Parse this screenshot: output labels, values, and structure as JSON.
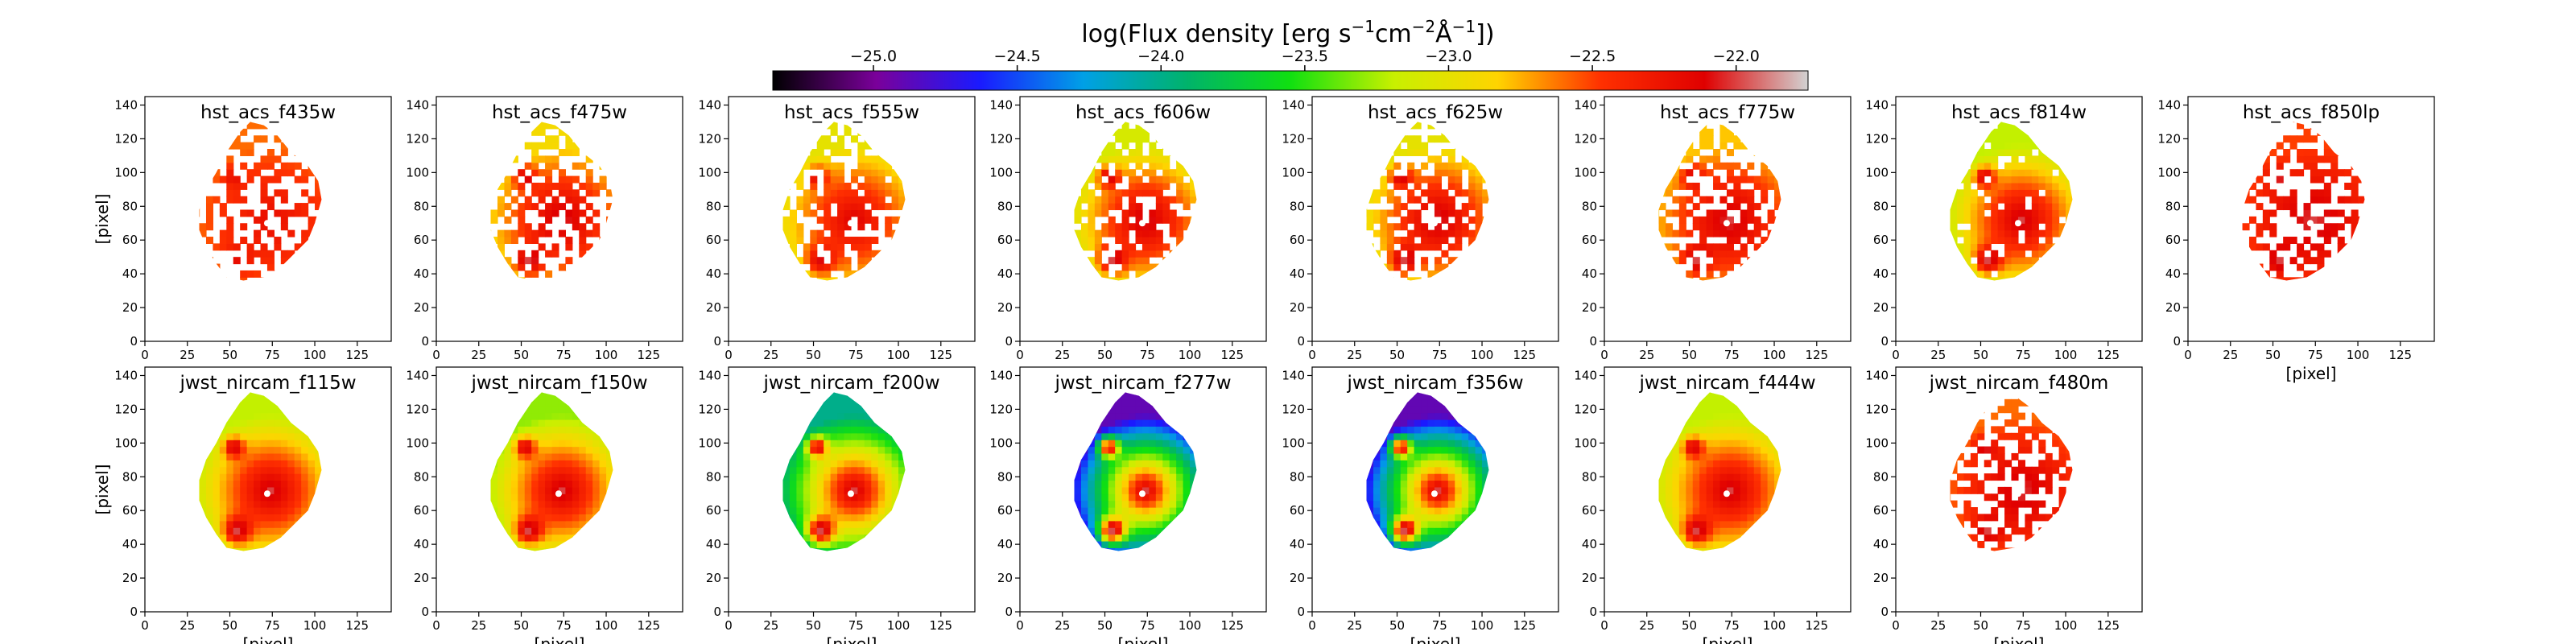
{
  "chart_data": {
    "type": "heatmap",
    "colorbar": {
      "label_text": "log(Flux density [erg s",
      "label_exp1": "−1",
      "label_mid": "cm",
      "label_exp2": "−2",
      "label_unit": "Å",
      "label_exp3": "−1",
      "label_close": "])",
      "range": [
        -25.35,
        -21.75
      ],
      "ticks": [
        -25.0,
        -24.5,
        -24.0,
        -23.5,
        -23.0,
        -22.5,
        -22.0
      ],
      "tick_labels": [
        "−25.0",
        "−24.5",
        "−24.0",
        "−23.5",
        "−23.0",
        "−22.5",
        "−22.0"
      ],
      "colormap": [
        "#000000",
        "#7a009a",
        "#1a1aff",
        "#00a0e6",
        "#00b36b",
        "#10e010",
        "#c8f000",
        "#ffd400",
        "#ff3000",
        "#e00000",
        "#d2d2d2"
      ]
    },
    "axes": {
      "xlim": [
        0,
        145
      ],
      "ylim": [
        0,
        145
      ],
      "xticks": [
        0,
        25,
        50,
        75,
        100,
        125
      ],
      "yticks": [
        0,
        20,
        40,
        60,
        80,
        100,
        120,
        140
      ],
      "xlabel": "[pixel]",
      "ylabel": "[pixel]"
    },
    "panels": [
      {
        "title": "hst_acs_f435w",
        "peak": -22.2,
        "edge": -22.6,
        "coverage": 0.45
      },
      {
        "title": "hst_acs_f475w",
        "peak": -22.0,
        "edge": -22.9,
        "coverage": 0.55
      },
      {
        "title": "hst_acs_f555w",
        "peak": -22.1,
        "edge": -23.0,
        "coverage": 0.7
      },
      {
        "title": "hst_acs_f606w",
        "peak": -22.0,
        "edge": -23.1,
        "coverage": 0.75
      },
      {
        "title": "hst_acs_f625w",
        "peak": -22.0,
        "edge": -23.0,
        "coverage": 0.65
      },
      {
        "title": "hst_acs_f775w",
        "peak": -22.0,
        "edge": -22.8,
        "coverage": 0.6
      },
      {
        "title": "hst_acs_f814w",
        "peak": -22.0,
        "edge": -23.2,
        "coverage": 0.9
      },
      {
        "title": "hst_acs_f850lp",
        "peak": -22.0,
        "edge": -22.5,
        "coverage": 0.5
      },
      {
        "title": "jwst_nircam_f115w",
        "peak": -22.0,
        "edge": -23.2,
        "coverage": 1.0
      },
      {
        "title": "jwst_nircam_f150w",
        "peak": -22.0,
        "edge": -23.3,
        "coverage": 1.0
      },
      {
        "title": "jwst_nircam_f200w",
        "peak": -22.0,
        "edge": -24.0,
        "coverage": 1.0
      },
      {
        "title": "jwst_nircam_f277w",
        "peak": -22.0,
        "edge": -24.9,
        "coverage": 1.0
      },
      {
        "title": "jwst_nircam_f356w",
        "peak": -22.0,
        "edge": -24.9,
        "coverage": 1.0
      },
      {
        "title": "jwst_nircam_f444w",
        "peak": -22.0,
        "edge": -23.2,
        "coverage": 1.0
      },
      {
        "title": "jwst_nircam_f480m",
        "peak": -22.0,
        "edge": -22.6,
        "coverage": 0.55
      }
    ]
  }
}
